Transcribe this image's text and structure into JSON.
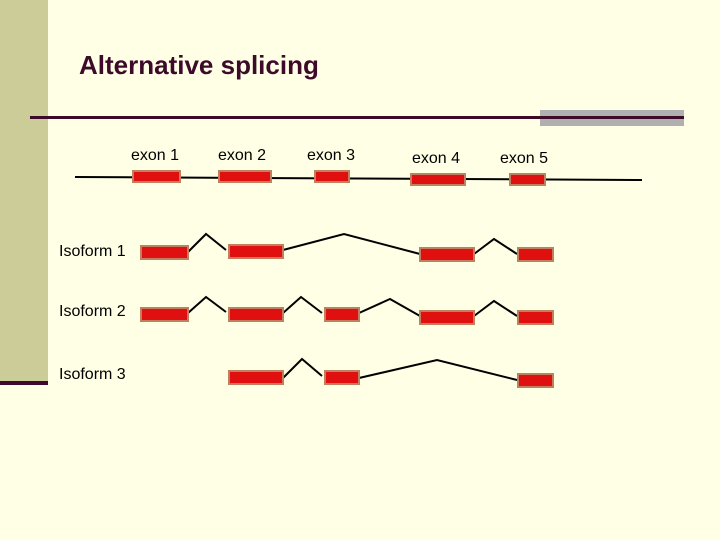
{
  "title": "Alternative splicing",
  "exon_labels": [
    "exon 1",
    "exon 2",
    "exon 3",
    "exon 4",
    "exon 5"
  ],
  "isoforms": [
    {
      "label": "Isoform 1",
      "exons": [
        "exon 1",
        "exon 2",
        "exon 4",
        "exon 5"
      ]
    },
    {
      "label": "Isoform 2",
      "exons": [
        "exon 1",
        "exon 2",
        "exon 3",
        "exon 4",
        "exon 5"
      ]
    },
    {
      "label": "Isoform 3",
      "exons": [
        "exon 2",
        "exon 3",
        "exon 5"
      ]
    }
  ],
  "colors": {
    "background": "#ffffe5",
    "exon_fill": "#e01010",
    "exon_border": "#c08060",
    "line": "#000000",
    "title": "#3d0a2a"
  }
}
